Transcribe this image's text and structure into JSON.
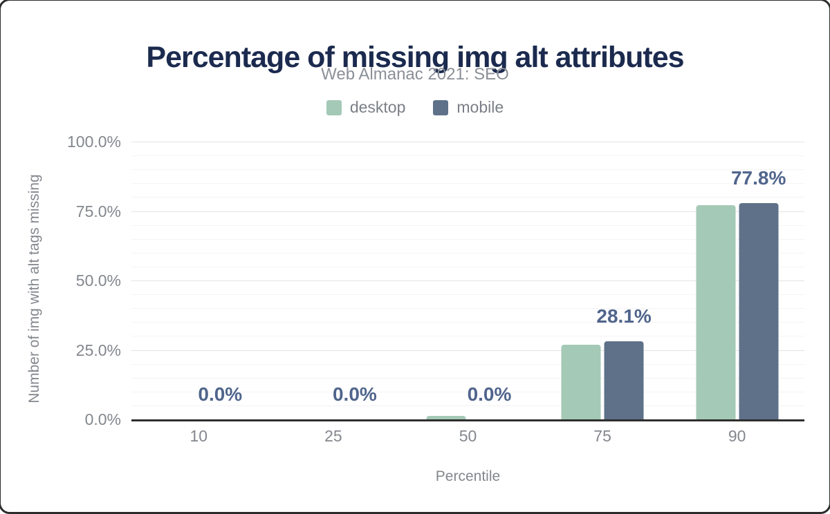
{
  "figure": {
    "title": "Percentage of missing img alt attributes",
    "subtitle": "Web Almanac 2021: SEO"
  },
  "legend": [
    {
      "label": "desktop",
      "color": "#a4c9b6"
    },
    {
      "label": "mobile",
      "color": "#5e7189"
    }
  ],
  "chart_data": {
    "type": "bar",
    "title": "Percentage of missing img alt attributes",
    "subtitle": "Web Almanac 2021: SEO",
    "categories": [
      "10",
      "25",
      "50",
      "75",
      "90"
    ],
    "series": [
      {
        "name": "desktop",
        "color": "#a4c9b6",
        "values": [
          0.0,
          0.0,
          1.2,
          26.8,
          77.2
        ]
      },
      {
        "name": "mobile",
        "color": "#5e7189",
        "values": [
          0.0,
          0.0,
          0.0,
          28.1,
          77.8
        ]
      }
    ],
    "data_labels": {
      "series": "mobile",
      "values": [
        "0.0%",
        "0.0%",
        "0.0%",
        "28.1%",
        "77.8%"
      ]
    },
    "xlabel": "Percentile",
    "ylabel": "Number of img with alt tags missing",
    "ylim": [
      0,
      100
    ],
    "yticks": [
      {
        "label": "100.0%",
        "value": 100
      },
      {
        "label": "75.0%",
        "value": 75
      },
      {
        "label": "50.0%",
        "value": 50
      },
      {
        "label": "25.0%",
        "value": 25
      },
      {
        "label": "0.0%",
        "value": 0
      }
    ],
    "grid": {
      "minor_step": 5,
      "major_step": 25,
      "on": true
    },
    "legend_position": "top"
  },
  "colors": {
    "title": "#1b2a4e",
    "subtitle": "#8b9097",
    "axis_text": "#83878d",
    "value_label": "#50658c",
    "baseline": "#2e2e2e",
    "gridline_major": "#e3e3e3",
    "gridline_minor": "#f4f4f4",
    "desktop": "#a4c9b6",
    "mobile": "#5e7189"
  }
}
